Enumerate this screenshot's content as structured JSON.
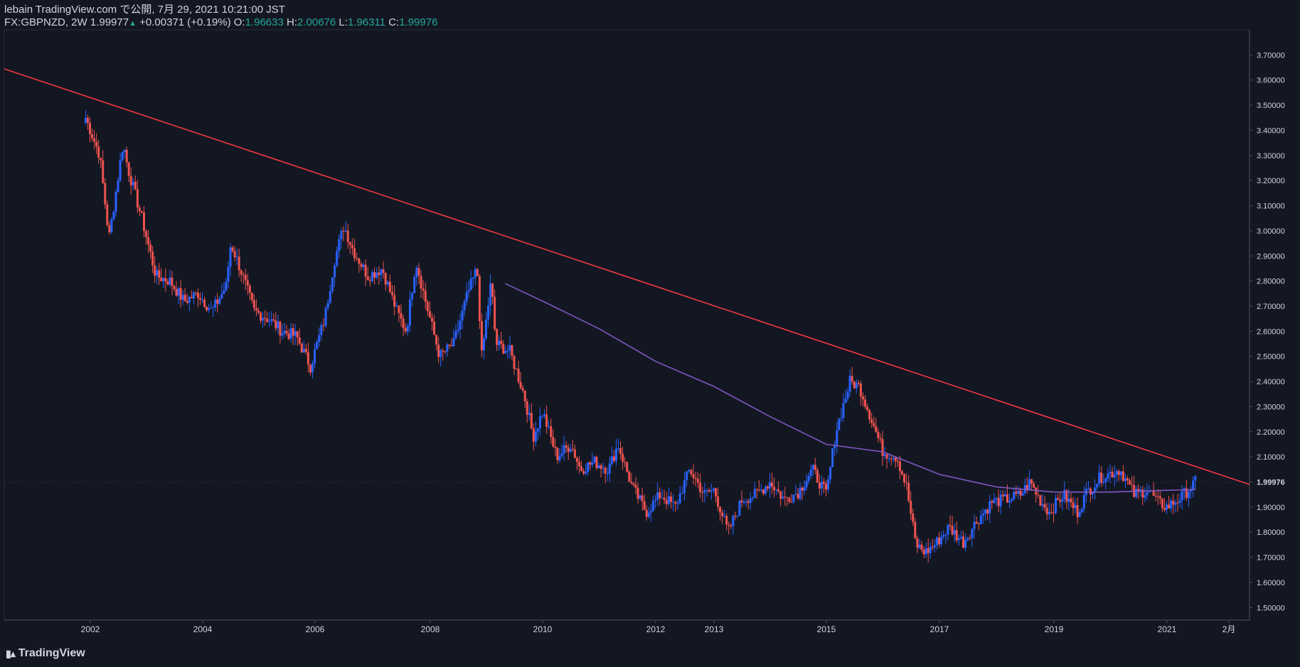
{
  "header": {
    "line1": "lebain TradingView.com で公開, 7月 29, 2021 10:21:00 JST",
    "symbol": "FX:GBPNZD, 2W",
    "last": "1.99977",
    "change": "+0.00371 (+0.19%)",
    "o_label": "O:",
    "o_value": "1.96633",
    "h_label": "H:",
    "h_value": "2.00676",
    "l_label": "L:",
    "l_value": "1.96311",
    "c_label": "C:",
    "c_value": "1.99976"
  },
  "footer": {
    "brand": "TradingView"
  },
  "colors": {
    "background": "#131722",
    "bull": "#2962ff",
    "bear": "#ef5350",
    "trendline": "#f23645",
    "ma": "#7e57c2",
    "axis_text": "#d1d4dc",
    "price_label_bg": "#131722"
  },
  "chart_data": {
    "type": "candlestick",
    "ylim": [
      1.45,
      3.8
    ],
    "y_ticks": [
      "3.70000",
      "3.60000",
      "3.50000",
      "3.40000",
      "3.30000",
      "3.20000",
      "3.10000",
      "3.00000",
      "2.90000",
      "2.80000",
      "2.70000",
      "2.60000",
      "2.50000",
      "2.40000",
      "2.30000",
      "2.20000",
      "2.10000",
      "1.99976",
      "1.90000",
      "1.80000",
      "1.70000",
      "1.60000",
      "1.50000"
    ],
    "x_ticks": [
      "2002",
      "2004",
      "2006",
      "2008",
      "2010",
      "2012",
      "2013",
      "2015",
      "2017",
      "2019",
      "2021",
      "2月"
    ],
    "last_price": "1.99976",
    "close_path": [
      [
        "2001-12",
        3.45
      ],
      [
        "2002-01",
        3.4
      ],
      [
        "2002-03",
        3.3
      ],
      [
        "2002-05",
        2.97
      ],
      [
        "2002-08",
        3.35
      ],
      [
        "2002-09",
        3.25
      ],
      [
        "2002-12",
        3.05
      ],
      [
        "2003-03",
        2.82
      ],
      [
        "2003-06",
        2.8
      ],
      [
        "2003-09",
        2.72
      ],
      [
        "2003-12",
        2.75
      ],
      [
        "2004-03",
        2.68
      ],
      [
        "2004-06",
        2.78
      ],
      [
        "2004-07",
        2.95
      ],
      [
        "2004-09",
        2.85
      ],
      [
        "2004-12",
        2.68
      ],
      [
        "2005-03",
        2.65
      ],
      [
        "2005-06",
        2.6
      ],
      [
        "2005-09",
        2.58
      ],
      [
        "2005-12",
        2.46
      ],
      [
        "2006-03",
        2.65
      ],
      [
        "2006-05",
        2.88
      ],
      [
        "2006-07",
        3.02
      ],
      [
        "2006-09",
        2.92
      ],
      [
        "2006-12",
        2.82
      ],
      [
        "2007-03",
        2.85
      ],
      [
        "2007-06",
        2.68
      ],
      [
        "2007-08",
        2.6
      ],
      [
        "2007-10",
        2.88
      ],
      [
        "2007-12",
        2.72
      ],
      [
        "2008-03",
        2.5
      ],
      [
        "2008-06",
        2.55
      ],
      [
        "2008-09",
        2.75
      ],
      [
        "2008-11",
        2.85
      ],
      [
        "2008-12",
        2.5
      ],
      [
        "2009-02",
        2.8
      ],
      [
        "2009-03",
        2.55
      ],
      [
        "2009-06",
        2.52
      ],
      [
        "2009-09",
        2.35
      ],
      [
        "2009-11",
        2.18
      ],
      [
        "2010-01",
        2.28
      ],
      [
        "2010-04",
        2.1
      ],
      [
        "2010-07",
        2.15
      ],
      [
        "2010-09",
        2.05
      ],
      [
        "2010-12",
        2.08
      ],
      [
        "2011-03",
        2.05
      ],
      [
        "2011-05",
        2.15
      ],
      [
        "2011-08",
        1.98
      ],
      [
        "2011-11",
        1.88
      ],
      [
        "2012-02",
        1.95
      ],
      [
        "2012-05",
        1.9
      ],
      [
        "2012-08",
        2.05
      ],
      [
        "2012-11",
        1.95
      ],
      [
        "2013-01",
        1.97
      ],
      [
        "2013-04",
        1.8
      ],
      [
        "2013-07",
        1.93
      ],
      [
        "2013-10",
        1.95
      ],
      [
        "2014-01",
        2.0
      ],
      [
        "2014-04",
        1.93
      ],
      [
        "2014-07",
        1.96
      ],
      [
        "2014-10",
        2.05
      ],
      [
        "2015-01",
        1.95
      ],
      [
        "2015-03",
        2.2
      ],
      [
        "2015-06",
        2.4
      ],
      [
        "2015-08",
        2.38
      ],
      [
        "2015-10",
        2.28
      ],
      [
        "2016-01",
        2.12
      ],
      [
        "2016-04",
        2.1
      ],
      [
        "2016-06",
        1.98
      ],
      [
        "2016-08",
        1.75
      ],
      [
        "2016-10",
        1.72
      ],
      [
        "2016-12",
        1.75
      ],
      [
        "2017-03",
        1.82
      ],
      [
        "2017-06",
        1.76
      ],
      [
        "2017-09",
        1.85
      ],
      [
        "2017-12",
        1.92
      ],
      [
        "2018-03",
        1.93
      ],
      [
        "2018-06",
        1.95
      ],
      [
        "2018-08",
        2.0
      ],
      [
        "2018-10",
        1.93
      ],
      [
        "2018-12",
        1.88
      ],
      [
        "2019-03",
        1.95
      ],
      [
        "2019-06",
        1.88
      ],
      [
        "2019-08",
        1.96
      ],
      [
        "2019-11",
        2.02
      ],
      [
        "2020-03",
        2.05
      ],
      [
        "2020-06",
        1.95
      ],
      [
        "2020-09",
        1.97
      ],
      [
        "2020-11",
        1.92
      ],
      [
        "2021-01",
        1.9
      ],
      [
        "2021-04",
        1.94
      ],
      [
        "2021-07",
        2.0
      ]
    ],
    "trendline": [
      [
        "2000-06",
        3.67
      ],
      [
        "2022-07",
        1.99
      ]
    ],
    "ma_path": [
      [
        "2009-05",
        2.79
      ],
      [
        "2010-01",
        2.72
      ],
      [
        "2011-01",
        2.61
      ],
      [
        "2012-01",
        2.48
      ],
      [
        "2013-01",
        2.38
      ],
      [
        "2014-01",
        2.26
      ],
      [
        "2015-01",
        2.15
      ],
      [
        "2016-01",
        2.12
      ],
      [
        "2017-01",
        2.03
      ],
      [
        "2018-01",
        1.98
      ],
      [
        "2019-01",
        1.96
      ],
      [
        "2020-01",
        1.96
      ],
      [
        "2021-07",
        1.97
      ]
    ]
  }
}
